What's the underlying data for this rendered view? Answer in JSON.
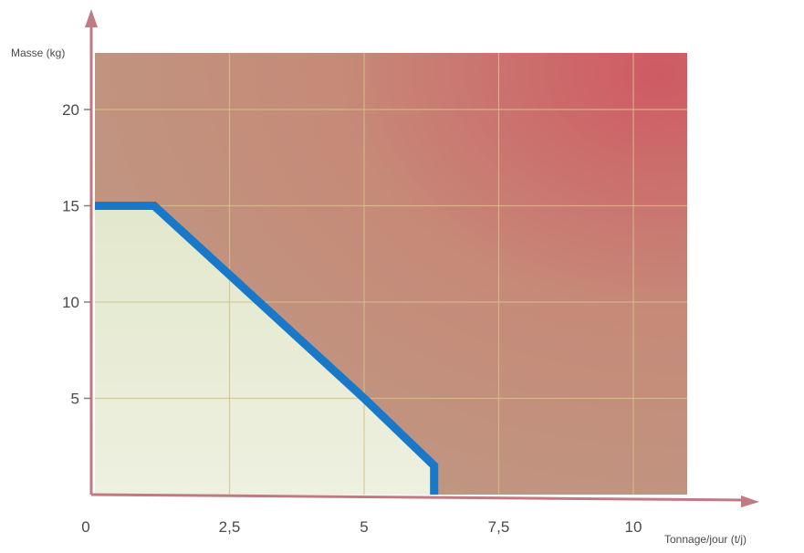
{
  "chart_data": {
    "type": "area",
    "xlabel": "Tonnage/jour (t/j)",
    "ylabel": "Masse (kg)",
    "xlim": [
      0,
      11
    ],
    "ylim": [
      0,
      23
    ],
    "xticks": [
      "0",
      "2,5",
      "5",
      "7,5",
      "10"
    ],
    "xtick_values": [
      0,
      2.5,
      5,
      7.5,
      10
    ],
    "yticks": [
      "5",
      "10",
      "15",
      "20"
    ],
    "ytick_values": [
      5,
      10,
      15,
      20
    ],
    "grid": true,
    "series": [
      {
        "x": [
          0,
          1.1,
          5,
          6.3,
          6.3
        ],
        "y": [
          15,
          15,
          5,
          1.5,
          0
        ]
      }
    ],
    "colors": {
      "line": "#1a78c8",
      "safe_region": "#e6ecd2",
      "danger_region_light": "#c3957e",
      "danger_region_dark": "#cf5a64",
      "grid": "#d6c08a",
      "axis": "#c07a82"
    }
  }
}
